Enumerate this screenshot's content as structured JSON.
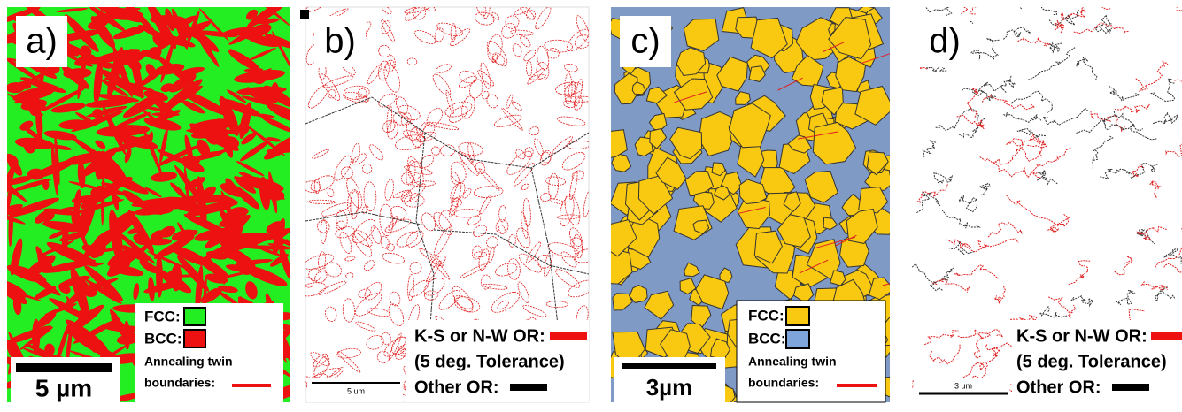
{
  "panels": [
    {
      "label": "a)",
      "scale_bar": "5 µm",
      "legend": [
        "FCC:",
        "BCC:",
        "Annealing twin",
        "boundaries:"
      ]
    },
    {
      "label": "b)",
      "scale_bar": "5 um",
      "legend": [
        "K-S or N-W OR:",
        "(5 deg. Tolerance)",
        "Other OR:"
      ]
    },
    {
      "label": "c)",
      "scale_bar": "3µm",
      "legend": [
        "FCC:",
        "BCC:",
        "Annealing twin",
        "boundaries:"
      ]
    },
    {
      "label": "d)",
      "scale_bar": "3 um",
      "legend": [
        "K-S or N-W OR:",
        "(5 deg. Tolerance)",
        "Other OR:"
      ]
    }
  ]
}
